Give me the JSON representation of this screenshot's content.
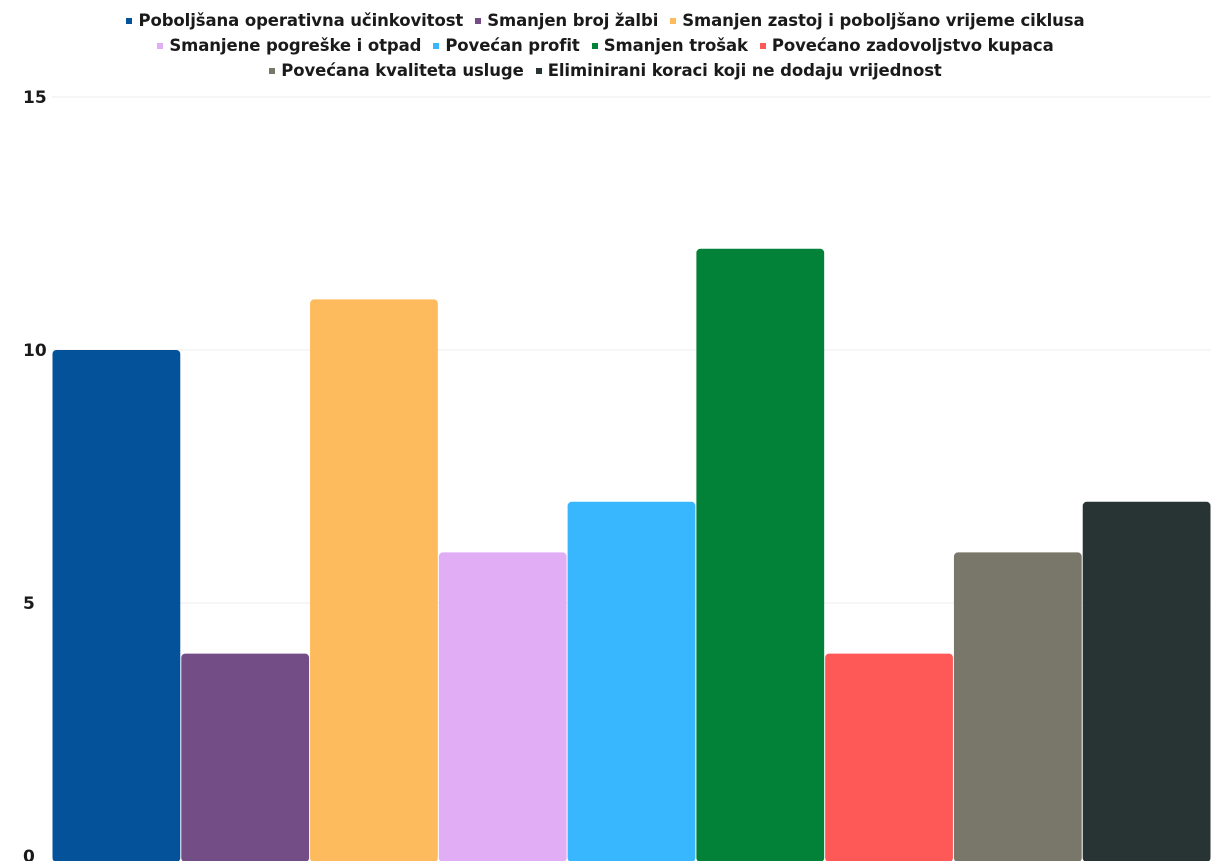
{
  "chart_data": {
    "type": "bar",
    "title": "",
    "xlabel": "",
    "ylabel": "",
    "ylim": [
      0,
      15
    ],
    "yticks": [
      0,
      5,
      10,
      15
    ],
    "grid": true,
    "legend_position": "top-center",
    "categories": [
      "Poboljšana operativna učinkovitost",
      "Smanjen broj žalbi",
      "Smanjen zastoj i poboljšano vrijeme ciklusa",
      "Smanjene pogreške i otpad",
      "Povećan profit",
      "Smanjen trošak",
      "Povećano zadovoljstvo kupaca",
      "Povećana kvaliteta usluge",
      "Eliminirani koraci koji ne dodaju vrijednost"
    ],
    "values": [
      10,
      4,
      11,
      6,
      7,
      12,
      4,
      6,
      7
    ],
    "colors": [
      "#04529a",
      "#734e86",
      "#febb5d",
      "#e1aef6",
      "#39b7fe",
      "#028138",
      "#fe5857",
      "#797769",
      "#283334"
    ],
    "legend_rows": [
      [
        0,
        1,
        2
      ],
      [
        3,
        4,
        5,
        6
      ],
      [
        7,
        8
      ]
    ]
  }
}
